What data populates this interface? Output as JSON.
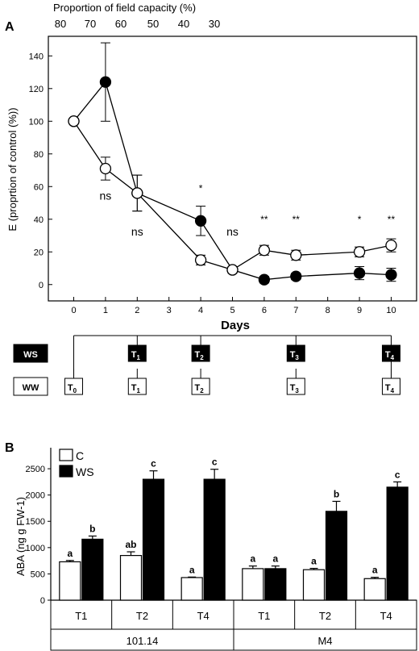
{
  "panel_a_letter": "A",
  "panel_b_letter": "B",
  "chart_data": [
    {
      "type": "line",
      "top_axis_label": "Proportion of field capacity (%)",
      "top_ticks": [
        "80",
        "70",
        "60",
        "50",
        "40",
        "30"
      ],
      "xlabel": "Days",
      "ylabel": "E (proprtion of control (%))",
      "x_ticks": [
        0,
        1,
        2,
        3,
        4,
        5,
        6,
        7,
        8,
        9,
        10
      ],
      "xlim": [
        -0.8,
        10.8
      ],
      "ylim": [
        -10,
        152
      ],
      "y_ticks": [
        0,
        20,
        40,
        60,
        80,
        100,
        120,
        140
      ],
      "series": [
        {
          "marker": "filled",
          "x": [
            0,
            1,
            2,
            4,
            5,
            6,
            7,
            9,
            10
          ],
          "y": [
            100,
            124,
            56,
            39,
            9,
            3,
            5,
            7,
            6
          ],
          "err": [
            0,
            24,
            11,
            9,
            2,
            2,
            2,
            4,
            4
          ]
        },
        {
          "marker": "open",
          "x": [
            0,
            1,
            2,
            4,
            5,
            6,
            7,
            9,
            10
          ],
          "y": [
            100,
            71,
            56,
            15,
            9,
            21,
            18,
            20,
            24
          ],
          "err": [
            0,
            7,
            11,
            3,
            2,
            3,
            3,
            3,
            4
          ]
        }
      ],
      "annotations": [
        {
          "x": 1,
          "y": 52,
          "text": "ns"
        },
        {
          "x": 2,
          "y": 30,
          "text": "ns"
        },
        {
          "x": 4,
          "y": 57,
          "text": "*"
        },
        {
          "x": 5,
          "y": 30,
          "text": "ns"
        },
        {
          "x": 6,
          "y": 38,
          "text": "**"
        },
        {
          "x": 7,
          "y": 38,
          "text": "**"
        },
        {
          "x": 9,
          "y": 38,
          "text": "*"
        },
        {
          "x": 10,
          "y": 38,
          "text": "**"
        }
      ]
    },
    {
      "type": "timeline",
      "rows": [
        {
          "label": "WS",
          "style": "filled",
          "points": [
            {
              "day": 2,
              "t": "T",
              "sub": "1"
            },
            {
              "day": 4,
              "t": "T",
              "sub": "2"
            },
            {
              "day": 7,
              "t": "T",
              "sub": "3"
            },
            {
              "day": 10,
              "t": "T",
              "sub": "4"
            }
          ]
        },
        {
          "label": "WW",
          "style": "open",
          "points": [
            {
              "day": 0,
              "t": "T",
              "sub": "0"
            },
            {
              "day": 2,
              "t": "T",
              "sub": "1"
            },
            {
              "day": 4,
              "t": "T",
              "sub": "2"
            },
            {
              "day": 7,
              "t": "T",
              "sub": "3"
            },
            {
              "day": 10,
              "t": "T",
              "sub": "4"
            }
          ]
        }
      ]
    },
    {
      "type": "bar",
      "ylabel": "ABA (ng g FW-1)",
      "ylim": [
        0,
        2900
      ],
      "y_ticks": [
        0,
        500,
        1000,
        1500,
        2000,
        2500
      ],
      "legend": [
        {
          "name": "C",
          "fill": "#ffffff"
        },
        {
          "name": "WS",
          "fill": "#000000"
        }
      ],
      "groups": [
        "101.14",
        "M4"
      ],
      "categories": [
        "T1",
        "T2",
        "T4",
        "T1",
        "T2",
        "T4"
      ],
      "series": [
        {
          "name": "C",
          "values": [
            730,
            850,
            430,
            600,
            580,
            410
          ],
          "err": [
            25,
            70,
            10,
            50,
            25,
            25
          ],
          "letters": [
            "a",
            "ab",
            "a",
            "a",
            "a",
            "a"
          ]
        },
        {
          "name": "WS",
          "values": [
            1160,
            2300,
            2300,
            600,
            1690,
            2150
          ],
          "err": [
            60,
            160,
            190,
            50,
            190,
            100
          ],
          "letters": [
            "b",
            "c",
            "c",
            "a",
            "b",
            "c"
          ]
        }
      ]
    }
  ]
}
